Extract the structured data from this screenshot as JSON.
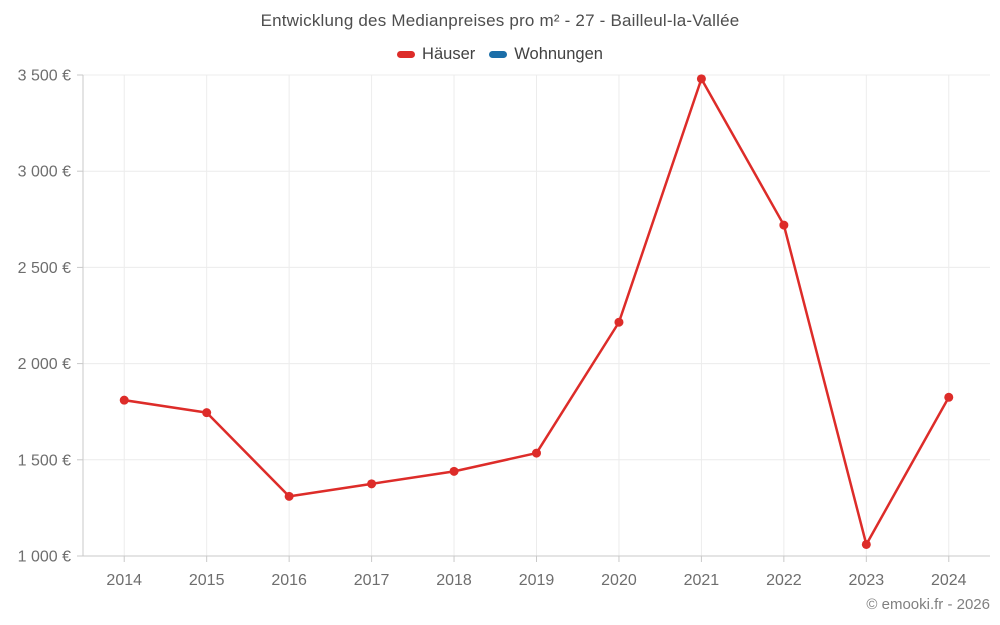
{
  "footer": {
    "credit": "© emooki.fr - 2026"
  },
  "colors": {
    "background": "#ffffff",
    "title_text": "#4e4e4e",
    "legend_text": "#424242",
    "axis_text": "#6e6e6e",
    "grid_line": "#ececec",
    "axis_line": "#c9c9c9",
    "footer_text": "#808080",
    "series_haeuser": "#dd2c29",
    "series_wohnungen": "#1b6ea8"
  },
  "chart_data": {
    "type": "line",
    "title": "Entwicklung des Medianpreises pro m² - 27 - Bailleul-la-Vallée",
    "xlabel": "",
    "ylabel": "",
    "categories": [
      "2014",
      "2015",
      "2016",
      "2017",
      "2018",
      "2019",
      "2020",
      "2021",
      "2022",
      "2023",
      "2024"
    ],
    "series": [
      {
        "name": "Häuser",
        "color": "#dd2c29",
        "marker": "circle",
        "values": [
          1810,
          1745,
          1310,
          1375,
          1440,
          1535,
          2215,
          3480,
          2720,
          1060,
          1825
        ]
      },
      {
        "name": "Wohnungen",
        "color": "#1b6ea8",
        "marker": "circle",
        "values": []
      }
    ],
    "ylim": [
      1000,
      3500
    ],
    "yticks": [
      1000,
      1500,
      2000,
      2500,
      3000,
      3500
    ],
    "ytick_labels": [
      "1 000 €",
      "1 500 €",
      "2 000 €",
      "2 500 €",
      "3 000 €",
      "3 500 €"
    ],
    "grid": true,
    "legend_position": "top",
    "currency": "€"
  }
}
